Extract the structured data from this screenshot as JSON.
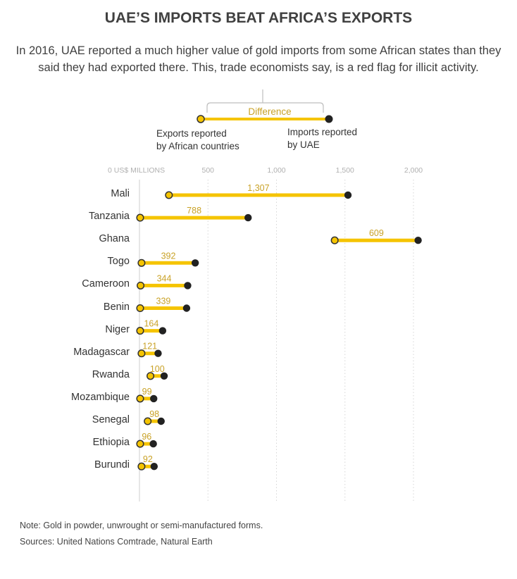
{
  "title": "UAE’S IMPORTS BEAT AFRICA’S EXPORTS",
  "subtitle": "In 2016, UAE reported a much higher value of gold imports from some African states than they said they had exported there. This, trade economists say, is a red flag for illicit activity.",
  "legend": {
    "difference": "Difference",
    "exports": "Exports reported by African countries",
    "exports_line1": "Exports reported",
    "exports_line2": "by African countries",
    "imports": "Imports reported by UAE",
    "imports_line1": "Imports reported",
    "imports_line2": "by UAE"
  },
  "colors": {
    "accent": "#f5c400",
    "difference_text": "#c9a227",
    "imports_dot": "#222222",
    "exports_dot_fill": "#f5c400"
  },
  "axis": {
    "unit_label": "0 US$ MILLIONS",
    "ticks": [
      "500",
      "1,000",
      "1,500",
      "2,000"
    ]
  },
  "chart_data": {
    "type": "dumbbell",
    "title": "UAE’S IMPORTS BEAT AFRICA’S EXPORTS",
    "xlabel": "US$ MILLIONS",
    "xlim": [
      0,
      2000
    ],
    "xticks": [
      0,
      500,
      1000,
      1500,
      2000
    ],
    "grid": true,
    "series": [
      {
        "name": "Exports reported by African countries",
        "key": "exports"
      },
      {
        "name": "Imports reported by UAE",
        "key": "imports"
      }
    ],
    "categories": [
      "Mali",
      "Tanzania",
      "Ghana",
      "Togo",
      "Cameroon",
      "Benin",
      "Niger",
      "Madagascar",
      "Rwanda",
      "Mozambique",
      "Senegal",
      "Ethiopia",
      "Burundi"
    ],
    "exports": [
      215,
      5,
      1425,
      15,
      8,
      5,
      5,
      15,
      80,
      5,
      60,
      5,
      15
    ],
    "imports": [
      1522,
      793,
      2034,
      407,
      352,
      344,
      169,
      136,
      180,
      104,
      158,
      101,
      107
    ],
    "difference": [
      1307,
      788,
      609,
      392,
      344,
      339,
      164,
      121,
      100,
      99,
      98,
      96,
      92
    ],
    "difference_labels": [
      "1,307",
      "788",
      "609",
      "392",
      "344",
      "339",
      "164",
      "121",
      "100",
      "99",
      "98",
      "96",
      "92"
    ]
  },
  "footer": {
    "note": "Note: Gold in powder, unwrought or semi-manufactured forms.",
    "sources": "Sources: United Nations Comtrade, Natural Earth"
  }
}
